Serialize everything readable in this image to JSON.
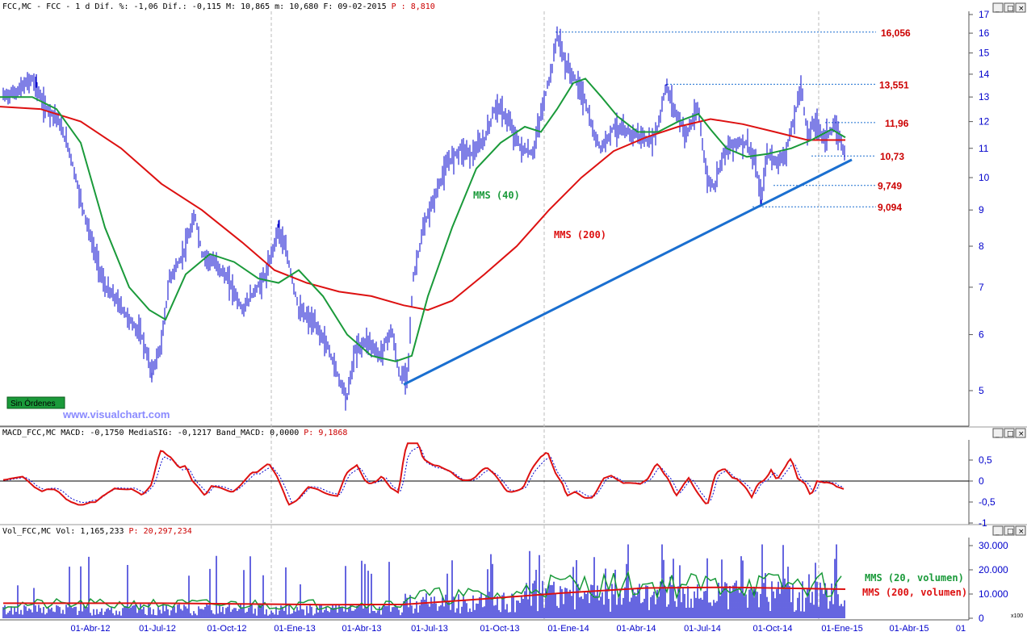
{
  "price_panel": {
    "header": "FCC,MC - FCC -  1 d Dif. %: -1,06 Dif.: -0,115 M: 10,865 m: 10,680 F: 09-02-2015",
    "header_price_label": "P : 8,810",
    "watermark": "www.visualchart.com",
    "badge": "Sin Órdenes",
    "mms40_label": "MMS (40)",
    "mms200_label": "MMS (200)",
    "levels": [
      "16,056",
      "13,551",
      "11,96",
      "10,73",
      "9,749",
      "9,094"
    ]
  },
  "macd_panel": {
    "header": "MACD_FCC,MC MACD: -0,1750 MediaSIG: -0,1217 Band_MACD: 0,0000",
    "header_price_label": "P: 9,1868"
  },
  "volume_panel": {
    "header": "Vol_FCC,MC Vol: 1,165,233",
    "header_price_label": "P: 20,297,234",
    "mms20_label": "MMS (20, volumen)",
    "mms200_label": "MMS (200, volumen)",
    "scale_unit": "x100"
  },
  "window_buttons": [
    "_",
    "□",
    "×"
  ],
  "colors": {
    "price": "#0000cc",
    "mms40": "#1a9a3a",
    "mms200": "#dd1111",
    "trend": "#1a6fd0",
    "level": "#cc0000"
  },
  "chart_data": [
    {
      "type": "line",
      "title": "FCC,MC",
      "x_ticks": [
        "01-Abr-12",
        "01-Jul-12",
        "01-Oct-12",
        "01-Ene-13",
        "01-Abr-13",
        "01-Jul-13",
        "01-Oct-13",
        "01-Ene-14",
        "01-Abr-14",
        "01-Jul-14",
        "01-Oct-14",
        "01-Ene-15",
        "01-Abr-15",
        "01"
      ],
      "y_ticks": [
        "17",
        "16",
        "15",
        "14",
        "13",
        "12",
        "11",
        "10",
        "9",
        "8",
        "7",
        "6",
        "5"
      ],
      "y_scale": "log",
      "ylim": [
        4.5,
        17
      ],
      "series": [
        {
          "name": "FCC,MC",
          "points": [
            [
              0,
              13.0
            ],
            [
              20,
              13.2
            ],
            [
              40,
              13.8
            ],
            [
              55,
              12.6
            ],
            [
              70,
              12.2
            ],
            [
              85,
              11.0
            ],
            [
              100,
              9.3
            ],
            [
              115,
              8.0
            ],
            [
              130,
              7.0
            ],
            [
              145,
              6.7
            ],
            [
              160,
              6.3
            ],
            [
              175,
              6.0
            ],
            [
              188,
              5.3
            ],
            [
              200,
              5.8
            ],
            [
              210,
              7.2
            ],
            [
              225,
              7.7
            ],
            [
              242,
              8.8
            ],
            [
              250,
              7.8
            ],
            [
              270,
              7.5
            ],
            [
              285,
              7.1
            ],
            [
              300,
              6.5
            ],
            [
              315,
              6.9
            ],
            [
              330,
              7.3
            ],
            [
              345,
              8.5
            ],
            [
              355,
              7.8
            ],
            [
              370,
              6.5
            ],
            [
              390,
              6.2
            ],
            [
              405,
              5.8
            ],
            [
              420,
              5.2
            ],
            [
              430,
              4.9
            ],
            [
              440,
              5.7
            ],
            [
              455,
              5.9
            ],
            [
              470,
              5.6
            ],
            [
              485,
              6.1
            ],
            [
              495,
              5.2
            ],
            [
              505,
              5.3
            ],
            [
              512,
              7.2
            ],
            [
              525,
              8.5
            ],
            [
              540,
              9.5
            ],
            [
              555,
              10.5
            ],
            [
              570,
              11.0
            ],
            [
              585,
              10.8
            ],
            [
              600,
              11.3
            ],
            [
              615,
              12.7
            ],
            [
              630,
              12.0
            ],
            [
              645,
              11.0
            ],
            [
              660,
              10.8
            ],
            [
              675,
              13.0
            ],
            [
              685,
              14.5
            ],
            [
              690,
              16.0
            ],
            [
              700,
              14.5
            ],
            [
              715,
              13.6
            ],
            [
              725,
              12.8
            ],
            [
              735,
              11.5
            ],
            [
              745,
              11.0
            ],
            [
              760,
              11.8
            ],
            [
              775,
              11.6
            ],
            [
              790,
              11.5
            ],
            [
              805,
              11.2
            ],
            [
              815,
              11.8
            ],
            [
              825,
              13.5
            ],
            [
              835,
              12.5
            ],
            [
              850,
              11.5
            ],
            [
              865,
              12.5
            ],
            [
              875,
              10.0
            ],
            [
              885,
              9.7
            ],
            [
              895,
              10.8
            ],
            [
              910,
              11.2
            ],
            [
              925,
              11.2
            ],
            [
              935,
              10.5
            ],
            [
              943,
              9.3
            ],
            [
              950,
              10.8
            ],
            [
              965,
              10.5
            ],
            [
              975,
              11.0
            ],
            [
              985,
              12.3
            ],
            [
              992,
              13.5
            ],
            [
              1000,
              11.5
            ],
            [
              1010,
              12.0
            ],
            [
              1020,
              11.4
            ],
            [
              1035,
              11.8
            ],
            [
              1047,
              10.8
            ]
          ]
        },
        {
          "name": "MMS (40)",
          "points": [
            [
              0,
              13.0
            ],
            [
              40,
              13.0
            ],
            [
              70,
              12.5
            ],
            [
              100,
              11.2
            ],
            [
              130,
              8.5
            ],
            [
              160,
              7.0
            ],
            [
              185,
              6.5
            ],
            [
              205,
              6.3
            ],
            [
              230,
              7.3
            ],
            [
              260,
              7.8
            ],
            [
              290,
              7.6
            ],
            [
              320,
              7.2
            ],
            [
              345,
              7.1
            ],
            [
              370,
              7.4
            ],
            [
              400,
              6.8
            ],
            [
              430,
              6.0
            ],
            [
              460,
              5.6
            ],
            [
              490,
              5.5
            ],
            [
              510,
              5.6
            ],
            [
              530,
              6.8
            ],
            [
              560,
              8.5
            ],
            [
              590,
              10.3
            ],
            [
              620,
              11.2
            ],
            [
              650,
              11.8
            ],
            [
              670,
              11.6
            ],
            [
              690,
              12.5
            ],
            [
              710,
              13.6
            ],
            [
              725,
              13.8
            ],
            [
              745,
              13.0
            ],
            [
              765,
              12.2
            ],
            [
              790,
              11.6
            ],
            [
              815,
              11.6
            ],
            [
              840,
              12.0
            ],
            [
              865,
              12.3
            ],
            [
              880,
              11.7
            ],
            [
              900,
              11.0
            ],
            [
              925,
              10.7
            ],
            [
              950,
              10.8
            ],
            [
              980,
              11.0
            ],
            [
              1005,
              11.3
            ],
            [
              1030,
              11.7
            ],
            [
              1047,
              11.4
            ]
          ]
        },
        {
          "name": "MMS (200)",
          "points": [
            [
              0,
              12.6
            ],
            [
              50,
              12.5
            ],
            [
              100,
              12.0
            ],
            [
              150,
              11.0
            ],
            [
              200,
              9.8
            ],
            [
              250,
              9.0
            ],
            [
              300,
              8.1
            ],
            [
              340,
              7.4
            ],
            [
              380,
              7.1
            ],
            [
              420,
              6.9
            ],
            [
              460,
              6.8
            ],
            [
              500,
              6.6
            ],
            [
              530,
              6.5
            ],
            [
              560,
              6.7
            ],
            [
              600,
              7.3
            ],
            [
              640,
              8.0
            ],
            [
              680,
              9.0
            ],
            [
              720,
              10.0
            ],
            [
              760,
              10.9
            ],
            [
              800,
              11.4
            ],
            [
              840,
              11.8
            ],
            [
              880,
              12.1
            ],
            [
              920,
              11.9
            ],
            [
              960,
              11.6
            ],
            [
              1000,
              11.3
            ],
            [
              1047,
              11.3
            ]
          ]
        }
      ],
      "trendline": [
        [
          500,
          5.1
        ],
        [
          1055,
          10.6
        ]
      ],
      "levels": [
        16.056,
        13.551,
        11.96,
        10.73,
        9.749,
        9.094
      ]
    },
    {
      "type": "line",
      "title": "MACD_FCC,MC",
      "y_ticks": [
        "0,5",
        "0",
        "-0,5",
        "-1"
      ],
      "ylim": [
        -1.1,
        1.0
      ]
    },
    {
      "type": "bar",
      "title": "Vol_FCC,MC",
      "y_ticks": [
        "30.000",
        "20.000",
        "10.000",
        "0"
      ],
      "ylim": [
        0,
        32000
      ],
      "series": [
        {
          "name": "MMS (20, volumen)"
        },
        {
          "name": "MMS (200, volumen)"
        }
      ]
    }
  ]
}
